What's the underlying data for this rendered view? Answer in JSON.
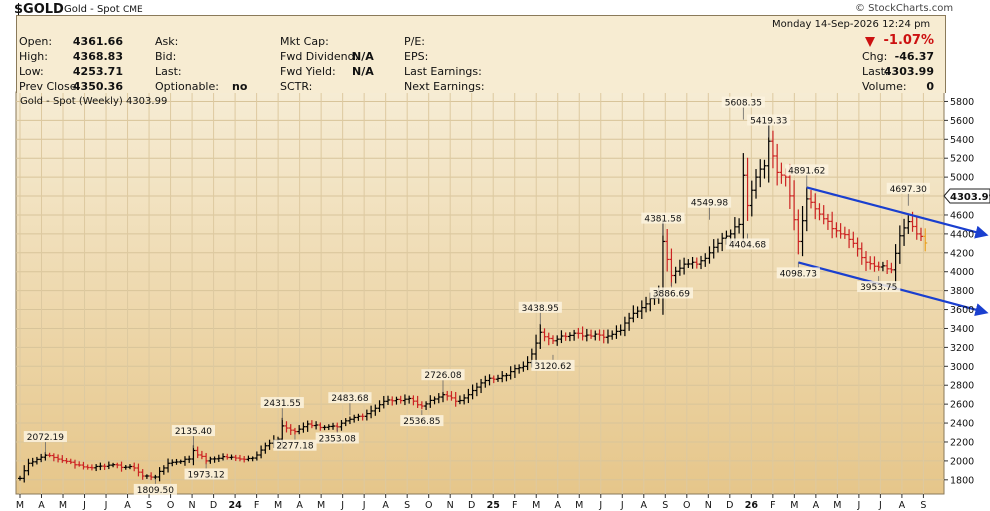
{
  "header": {
    "symbol": "$GOLD",
    "name": "Gold - Spot",
    "exchange": "CME",
    "timestamp": "Monday  14-Sep-2026  12:24 pm",
    "watermark": "© StockCharts.com",
    "change_pct": "-1.07%",
    "change_arrow": "down-triangle-icon",
    "fields": [
      {
        "label": "Open:",
        "value": "4361.66"
      },
      {
        "label": "High:",
        "value": "4368.83"
      },
      {
        "label": "Low:",
        "value": "4253.71"
      },
      {
        "label": "Prev Close:",
        "value": "4350.36"
      },
      {
        "label": "Ask:",
        "value": ""
      },
      {
        "label": "Bid:",
        "value": ""
      },
      {
        "label": "Last:",
        "value": ""
      },
      {
        "label": "Optionable:",
        "value": "no"
      },
      {
        "label": "Mkt Cap:",
        "value": ""
      },
      {
        "label": "Fwd Dividend:",
        "value": "N/A"
      },
      {
        "label": "Fwd Yield:",
        "value": "N/A"
      },
      {
        "label": "SCTR:",
        "value": ""
      },
      {
        "label": "P/E:",
        "value": ""
      },
      {
        "label": "EPS:",
        "value": ""
      },
      {
        "label": "Last Earnings:",
        "value": ""
      },
      {
        "label": "Next Earnings:",
        "value": ""
      },
      {
        "label": "Chg:",
        "value": "-46.37"
      },
      {
        "label": "Last:",
        "value": "4303.99"
      },
      {
        "label": "Volume:",
        "value": "0"
      }
    ]
  },
  "colors": {
    "background_top": "#f5ead0",
    "background_bottom": "#e8c98e",
    "up_bar": "#000000",
    "down_bar": "#cc2222",
    "trendline": "#1a3fcf",
    "last_bar": "#e8a020",
    "change_down": "#cc1111"
  },
  "chart_data": {
    "type": "ohlc",
    "title": "Gold - Spot (Weekly) 4303.99",
    "last_price": "4303.99",
    "ylim": [
      1650,
      5900
    ],
    "y_ticks": [
      1800,
      2000,
      2200,
      2400,
      2600,
      2800,
      3000,
      3200,
      3400,
      3600,
      3800,
      4000,
      4200,
      4400,
      4600,
      4800,
      5000,
      5200,
      5400,
      5600,
      5800
    ],
    "x_ticks": [
      "M",
      "A",
      "M",
      "J",
      "J",
      "A",
      "S",
      "O",
      "N",
      "D",
      "24",
      "F",
      "M",
      "A",
      "M",
      "J",
      "J",
      "A",
      "S",
      "O",
      "N",
      "D",
      "25",
      "F",
      "M",
      "A",
      "M",
      "J",
      "J",
      "A",
      "S",
      "O",
      "N",
      "D",
      "26",
      "F",
      "M",
      "A",
      "M",
      "J",
      "J",
      "A",
      "S"
    ],
    "x_bold": [
      "24",
      "25",
      "26"
    ],
    "annotations": [
      {
        "label": "2072.19",
        "week": 6,
        "value": 2072.19,
        "pos": "above"
      },
      {
        "label": "1809.50",
        "week": 32,
        "value": 1809.5,
        "pos": "below"
      },
      {
        "label": "2135.40",
        "week": 41,
        "value": 2135.4,
        "pos": "above"
      },
      {
        "label": "1973.12",
        "week": 44,
        "value": 1973.12,
        "pos": "below"
      },
      {
        "label": "2431.55",
        "week": 62,
        "value": 2431.55,
        "pos": "above"
      },
      {
        "label": "2277.18",
        "week": 65,
        "value": 2277.18,
        "pos": "below"
      },
      {
        "label": "2483.68",
        "week": 78,
        "value": 2483.68,
        "pos": "above"
      },
      {
        "label": "2353.08",
        "week": 75,
        "value": 2353.08,
        "pos": "below"
      },
      {
        "label": "2726.08",
        "week": 100,
        "value": 2726.08,
        "pos": "above"
      },
      {
        "label": "2536.85",
        "week": 95,
        "value": 2536.85,
        "pos": "below"
      },
      {
        "label": "3438.95",
        "week": 123,
        "value": 3438.95,
        "pos": "above"
      },
      {
        "label": "3120.62",
        "week": 126,
        "value": 3120.62,
        "pos": "below"
      },
      {
        "label": "4381.58",
        "week": 152,
        "value": 4381.58,
        "pos": "above"
      },
      {
        "label": "3886.69",
        "week": 154,
        "value": 3886.69,
        "pos": "below"
      },
      {
        "label": "4549.98",
        "week": 163,
        "value": 4549.98,
        "pos": "above"
      },
      {
        "label": "5608.35",
        "week": 171,
        "value": 5608.35,
        "pos": "above"
      },
      {
        "label": "4404.68",
        "week": 172,
        "value": 4404.68,
        "pos": "below"
      },
      {
        "label": "5419.33",
        "week": 177,
        "value": 5419.33,
        "pos": "above"
      },
      {
        "label": "4891.62",
        "week": 186,
        "value": 4891.62,
        "pos": "above"
      },
      {
        "label": "4098.73",
        "week": 184,
        "value": 4098.73,
        "pos": "below"
      },
      {
        "label": "4697.30",
        "week": 210,
        "value": 4697.3,
        "pos": "above"
      },
      {
        "label": "3953.75",
        "week": 203,
        "value": 3953.75,
        "pos": "below"
      }
    ],
    "trendlines": [
      {
        "from": {
          "week": 186,
          "value": 4891.62
        },
        "to": {
          "week": 224,
          "value": 4430
        }
      },
      {
        "from": {
          "week": 184,
          "value": 4098.73
        },
        "to": {
          "week": 224,
          "value": 3610
        }
      }
    ],
    "anchors": [
      [
        0,
        1815
      ],
      [
        2,
        1975
      ],
      [
        6,
        2060
      ],
      [
        11,
        1995
      ],
      [
        16,
        1930
      ],
      [
        21,
        1955
      ],
      [
        27,
        1925
      ],
      [
        29,
        1840
      ],
      [
        32,
        1830
      ],
      [
        35,
        1975
      ],
      [
        40,
        2020
      ],
      [
        41,
        2110
      ],
      [
        44,
        2000
      ],
      [
        48,
        2045
      ],
      [
        52,
        2020
      ],
      [
        55,
        2030
      ],
      [
        58,
        2160
      ],
      [
        61,
        2230
      ],
      [
        62,
        2370
      ],
      [
        64,
        2325
      ],
      [
        65,
        2310
      ],
      [
        68,
        2390
      ],
      [
        72,
        2355
      ],
      [
        75,
        2360
      ],
      [
        78,
        2440
      ],
      [
        82,
        2500
      ],
      [
        86,
        2630
      ],
      [
        89,
        2650
      ],
      [
        92,
        2660
      ],
      [
        95,
        2580
      ],
      [
        100,
        2700
      ],
      [
        103,
        2630
      ],
      [
        106,
        2700
      ],
      [
        110,
        2850
      ],
      [
        114,
        2900
      ],
      [
        118,
        2985
      ],
      [
        120,
        3040
      ],
      [
        123,
        3360
      ],
      [
        126,
        3270
      ],
      [
        128,
        3320
      ],
      [
        131,
        3350
      ],
      [
        134,
        3330
      ],
      [
        136,
        3340
      ],
      [
        139,
        3320
      ],
      [
        142,
        3380
      ],
      [
        145,
        3560
      ],
      [
        148,
        3660
      ],
      [
        151,
        3780
      ],
      [
        152,
        4320
      ],
      [
        154,
        3960
      ],
      [
        157,
        4080
      ],
      [
        160,
        4080
      ],
      [
        163,
        4200
      ],
      [
        165,
        4300
      ],
      [
        168,
        4400
      ],
      [
        170,
        4500
      ],
      [
        171,
        5020
      ],
      [
        172,
        4700
      ],
      [
        174,
        5000
      ],
      [
        176,
        5120
      ],
      [
        177,
        5380
      ],
      [
        179,
        5050
      ],
      [
        181,
        5000
      ],
      [
        184,
        4320
      ],
      [
        186,
        4770
      ],
      [
        190,
        4560
      ],
      [
        194,
        4400
      ],
      [
        197,
        4300
      ],
      [
        200,
        4100
      ],
      [
        203,
        4050
      ],
      [
        206,
        4020
      ],
      [
        208,
        4380
      ],
      [
        210,
        4530
      ],
      [
        212,
        4400
      ],
      [
        214,
        4304
      ]
    ]
  }
}
